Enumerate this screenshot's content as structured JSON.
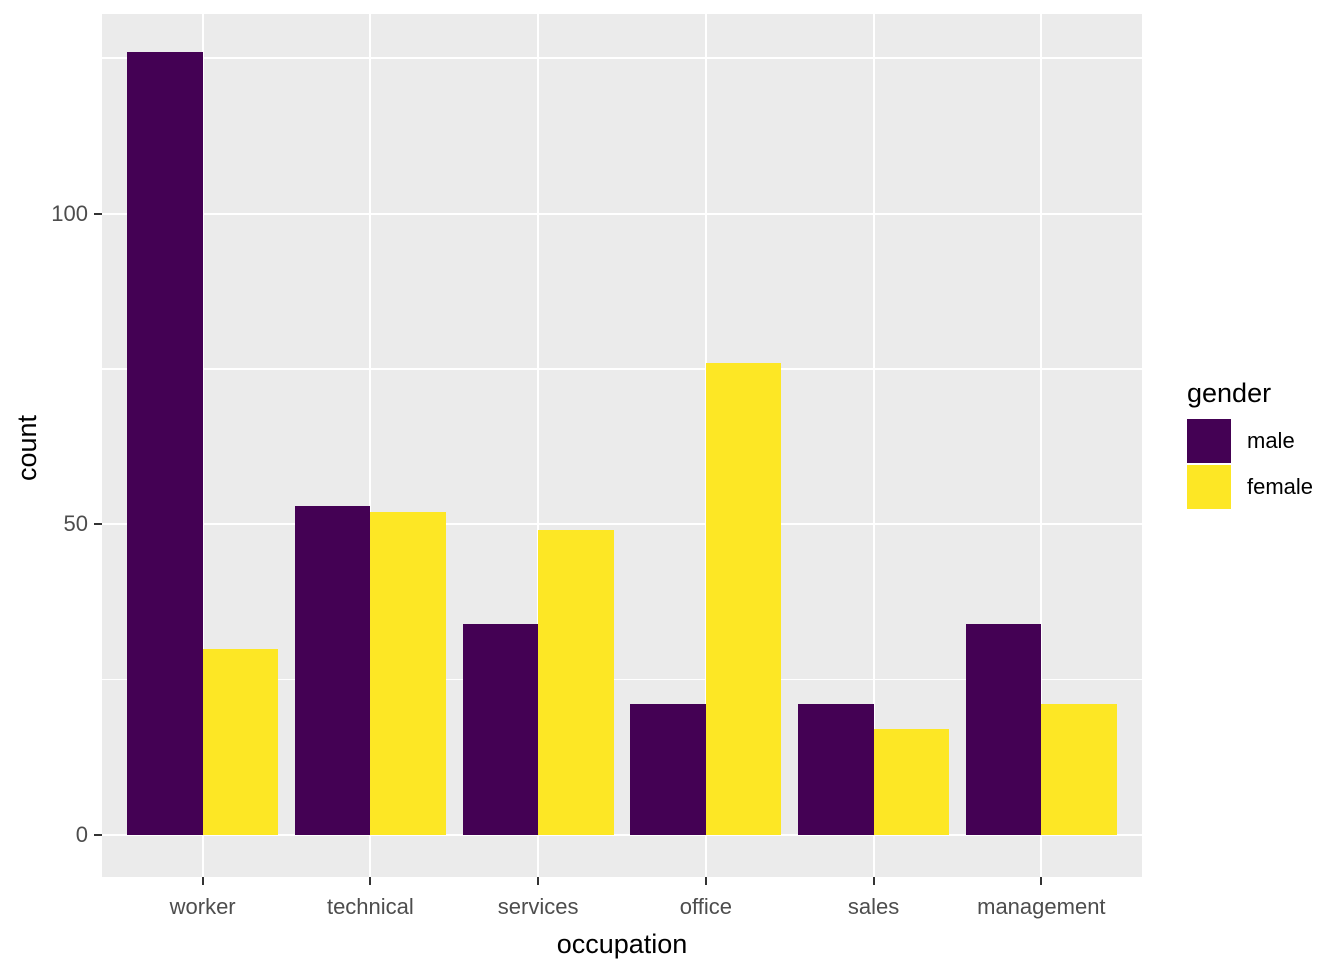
{
  "chart_data": {
    "type": "bar",
    "title": "",
    "xlabel": "occupation",
    "ylabel": "count",
    "categories": [
      "worker",
      "technical",
      "services",
      "office",
      "sales",
      "management"
    ],
    "series": [
      {
        "name": "male",
        "color": "#440154",
        "values": [
          126,
          53,
          34,
          21,
          21,
          34
        ]
      },
      {
        "name": "female",
        "color": "#FDE725",
        "values": [
          30,
          52,
          49,
          76,
          17,
          21
        ]
      }
    ],
    "legend": {
      "title": "gender",
      "position": "right"
    },
    "y_axis": {
      "tick_values": [
        0,
        50,
        100
      ],
      "tick_labels": [
        "0",
        "50",
        "100"
      ],
      "minor_values": [
        25,
        75,
        125
      ],
      "range_shown": [
        -6.8,
        132.1
      ]
    },
    "x_axis": {
      "tick_labels": [
        "worker",
        "technical",
        "services",
        "office",
        "sales",
        "management"
      ]
    },
    "layout_hints": {
      "bar_mode": "dodge",
      "grid": "white major+minor horizontal, white major vertical on grey panel",
      "legend_position": "right"
    },
    "colors": {
      "male": "#440154",
      "female": "#FDE725",
      "panel_bg": "#EBEBEB",
      "grid": "#FFFFFF",
      "tick_label": "#4D4D4D",
      "axis_title": "#000000",
      "tick_mark": "#333333"
    }
  }
}
